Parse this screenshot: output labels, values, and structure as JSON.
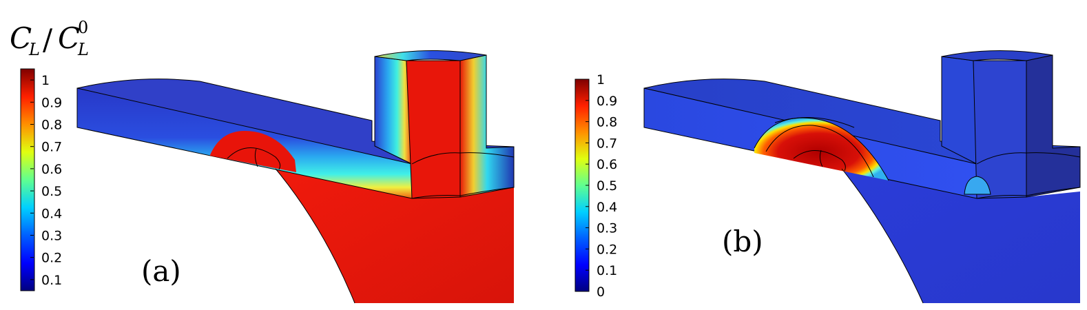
{
  "colors": {
    "jet_stops": [
      "#00007f",
      "#0000ff",
      "#007fff",
      "#00ffff",
      "#7fff7f",
      "#ffff00",
      "#ff7f00",
      "#ff0000",
      "#7f0000"
    ],
    "high": "#e8120c",
    "low": "#2d3dcc",
    "mid_cyan": "#33e6f2",
    "outline": "#000000"
  },
  "panel_a": {
    "label": "(a)",
    "colorbar": {
      "title_main": "C",
      "title_sub": "L",
      "title_slash": "/",
      "title_main2": "C",
      "title_sub2": "L",
      "title_sup2": "0",
      "min": 0.05,
      "max": 1.05,
      "ticks": [
        "1",
        "0.9",
        "0.8",
        "0.7",
        "0.6",
        "0.5",
        "0.4",
        "0.3",
        "0.2",
        "0.1"
      ]
    }
  },
  "panel_b": {
    "label": "(b)",
    "colorbar": {
      "min": 0,
      "max": 1,
      "ticks": [
        "1",
        "0.9",
        "0.8",
        "0.7",
        "0.6",
        "0.5",
        "0.4",
        "0.3",
        "0.2",
        "0.1",
        "0"
      ]
    }
  }
}
